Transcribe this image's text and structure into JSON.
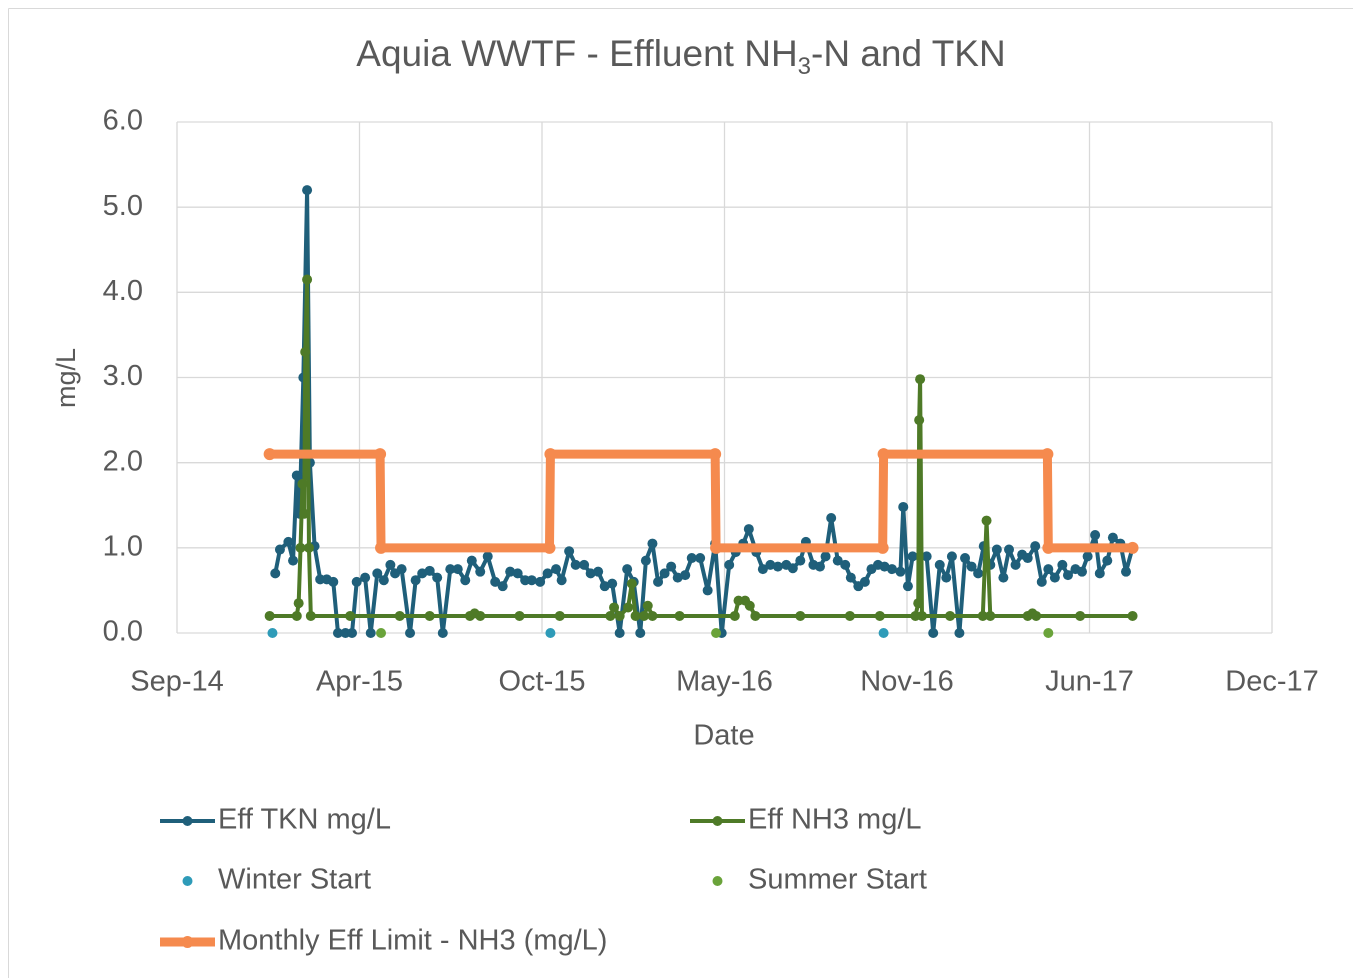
{
  "chart_data": {
    "type": "line",
    "title": [
      "Aquia WWTF - Effluent NH",
      "3",
      "-N and TKN"
    ],
    "x_label": "Date",
    "y_label": "mg/L",
    "xlim": [
      41912,
      43082
    ],
    "xticks": [
      {
        "value": 41912,
        "label": "Sep-14"
      },
      {
        "value": 42107,
        "label": "Apr-15"
      },
      {
        "value": 42302,
        "label": "Oct-15"
      },
      {
        "value": 42497,
        "label": "May-16"
      },
      {
        "value": 42692,
        "label": "Nov-16"
      },
      {
        "value": 42887,
        "label": "Jun-17"
      },
      {
        "value": 43082,
        "label": "Dec-17"
      }
    ],
    "ylim": [
      0,
      6
    ],
    "yticks": [
      {
        "value": 0,
        "label": "0.0"
      },
      {
        "value": 1,
        "label": "1.0"
      },
      {
        "value": 2,
        "label": "2.0"
      },
      {
        "value": 3,
        "label": "3.0"
      },
      {
        "value": 4,
        "label": "4.0"
      },
      {
        "value": 5,
        "label": "5.0"
      },
      {
        "value": 6,
        "label": "6.0"
      }
    ],
    "grid": true,
    "series": [
      {
        "name": "Eff TKN mg/L",
        "color": "#1f5f7a",
        "style": "line-markers",
        "x": [
          42017,
          42022,
          42031,
          42036,
          42040,
          42043,
          42047,
          42051,
          42054,
          42059,
          42065,
          42072,
          42079,
          42084,
          42092,
          42099,
          42104,
          42113,
          42119,
          42126,
          42133,
          42140,
          42145,
          42152,
          42161,
          42167,
          42174,
          42182,
          42190,
          42196,
          42204,
          42212,
          42220,
          42227,
          42236,
          42244,
          42252,
          42260,
          42268,
          42276,
          42284,
          42291,
          42300,
          42308,
          42317,
          42323,
          42331,
          42338,
          42347,
          42354,
          42362,
          42369,
          42377,
          42385,
          42393,
          42400,
          42407,
          42413,
          42420,
          42426,
          42433,
          42440,
          42447,
          42455,
          42462,
          42471,
          42479,
          42487,
          42494,
          42502,
          42509,
          42517,
          42523,
          42531,
          42538,
          42546,
          42554,
          42563,
          42570,
          42578,
          42584,
          42592,
          42599,
          42605,
          42611,
          42618,
          42626,
          42632,
          42640,
          42647,
          42654,
          42661,
          42668,
          42676,
          42685,
          42688,
          42693,
          42698,
          42706,
          42713,
          42720,
          42727,
          42734,
          42740,
          42748,
          42754,
          42761,
          42768,
          42774,
          42781,
          42788,
          42795,
          42801,
          42808,
          42815,
          42821,
          42829,
          42836,
          42843,
          42850,
          42858,
          42864,
          42872,
          42879,
          42885,
          42893,
          42898,
          42906,
          42912,
          42920,
          42926,
          42933
        ],
        "values": [
          0.7,
          0.98,
          1.07,
          0.85,
          1.85,
          1.4,
          3.0,
          5.2,
          2.0,
          1.02,
          0.63,
          0.63,
          0.6,
          0.0,
          0.0,
          0.0,
          0.6,
          0.65,
          0.0,
          0.7,
          0.62,
          0.8,
          0.7,
          0.75,
          0.0,
          0.62,
          0.7,
          0.73,
          0.65,
          0.0,
          0.75,
          0.75,
          0.62,
          0.85,
          0.72,
          0.9,
          0.6,
          0.55,
          0.72,
          0.7,
          0.62,
          0.62,
          0.6,
          0.7,
          0.75,
          0.62,
          0.96,
          0.8,
          0.8,
          0.7,
          0.72,
          0.55,
          0.58,
          0.0,
          0.75,
          0.6,
          0.0,
          0.85,
          1.05,
          0.6,
          0.7,
          0.78,
          0.65,
          0.68,
          0.88,
          0.88,
          0.5,
          1.05,
          0.0,
          0.8,
          0.95,
          1.05,
          1.22,
          0.95,
          0.75,
          0.8,
          0.78,
          0.8,
          0.76,
          0.85,
          1.07,
          0.8,
          0.78,
          0.9,
          1.35,
          0.85,
          0.8,
          0.65,
          0.55,
          0.6,
          0.75,
          0.8,
          0.78,
          0.75,
          0.72,
          1.48,
          0.55,
          0.9,
          0.9,
          0.9,
          0.0,
          0.8,
          0.65,
          0.9,
          0.0,
          0.88,
          0.78,
          0.7,
          1.02,
          0.8,
          0.98,
          0.65,
          0.98,
          0.8,
          0.92,
          0.88,
          1.02,
          0.6,
          0.75,
          0.65,
          0.8,
          0.68,
          0.75,
          0.72,
          0.9,
          1.15,
          0.7,
          0.85,
          1.12,
          1.05,
          0.72,
          1.0
        ]
      },
      {
        "name": "Eff NH3 mg/L",
        "color": "#4e7a27",
        "style": "line-markers",
        "x": [
          42011,
          42040,
          42042,
          42044,
          42046,
          42048,
          42049,
          42051,
          42053,
          42055,
          42097,
          42150,
          42182,
          42225,
          42230,
          42236,
          42278,
          42321,
          42375,
          42379,
          42385,
          42394,
          42398,
          42402,
          42411,
          42415,
          42420,
          42449,
          42508,
          42512,
          42519,
          42524,
          42530,
          42578,
          42631,
          42663,
          42701,
          42704,
          42705,
          42706,
          42708,
          42738,
          42773,
          42777,
          42781,
          42821,
          42826,
          42830,
          42877,
          42933
        ],
        "values": [
          0.2,
          0.2,
          0.35,
          1.0,
          1.75,
          1.4,
          3.3,
          4.15,
          1.0,
          0.2,
          0.2,
          0.2,
          0.2,
          0.2,
          0.23,
          0.2,
          0.2,
          0.2,
          0.2,
          0.3,
          0.2,
          0.3,
          0.58,
          0.2,
          0.2,
          0.32,
          0.2,
          0.2,
          0.2,
          0.38,
          0.38,
          0.32,
          0.2,
          0.2,
          0.2,
          0.2,
          0.2,
          0.35,
          2.5,
          2.98,
          0.2,
          0.2,
          0.2,
          1.32,
          0.2,
          0.2,
          0.23,
          0.2,
          0.2,
          0.2
        ]
      },
      {
        "name": "Winter Start",
        "color": "#2e9bb8",
        "style": "markers",
        "x": [
          42014,
          42311,
          42667
        ],
        "values": [
          0,
          0,
          0
        ]
      },
      {
        "name": "Summer Start",
        "color": "#6aa33a",
        "style": "markers",
        "x": [
          42130,
          42488,
          42843
        ],
        "values": [
          0,
          0,
          0
        ]
      },
      {
        "name": "Monthly Eff Limit - NH3 (mg/L)",
        "color": "#f58a4e",
        "style": "line-markers",
        "x": [
          42011,
          42129,
          42130,
          42310,
          42311,
          42487,
          42488,
          42666,
          42667,
          42842,
          42843,
          42933
        ],
        "values": [
          2.1,
          2.1,
          1.0,
          1.0,
          2.1,
          2.1,
          1.0,
          1.0,
          2.1,
          2.1,
          1.0,
          1.0
        ]
      }
    ]
  }
}
